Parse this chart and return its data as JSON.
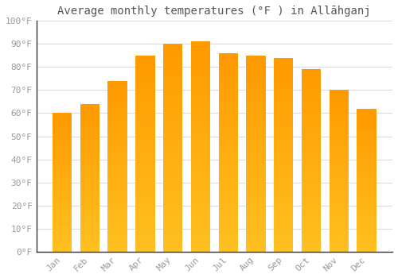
{
  "title": "Average monthly temperatures (°F ) in Allāhganj",
  "months": [
    "Jan",
    "Feb",
    "Mar",
    "Apr",
    "May",
    "Jun",
    "Jul",
    "Aug",
    "Sep",
    "Oct",
    "Nov",
    "Dec"
  ],
  "values": [
    60,
    64,
    74,
    85,
    90,
    91,
    86,
    85,
    84,
    79,
    70,
    62
  ],
  "bar_color_bottom": "#FFC020",
  "bar_color_top": "#FF9900",
  "background_color": "#FFFFFF",
  "grid_color": "#DDDDDD",
  "text_color": "#999999",
  "axis_color": "#333333",
  "ylim": [
    0,
    100
  ],
  "yticks": [
    0,
    10,
    20,
    30,
    40,
    50,
    60,
    70,
    80,
    90,
    100
  ],
  "ytick_labels": [
    "0°F",
    "10°F",
    "20°F",
    "30°F",
    "40°F",
    "50°F",
    "60°F",
    "70°F",
    "80°F",
    "90°F",
    "100°F"
  ],
  "title_fontsize": 10,
  "tick_fontsize": 8,
  "n_grad": 50,
  "bar_width": 0.7
}
